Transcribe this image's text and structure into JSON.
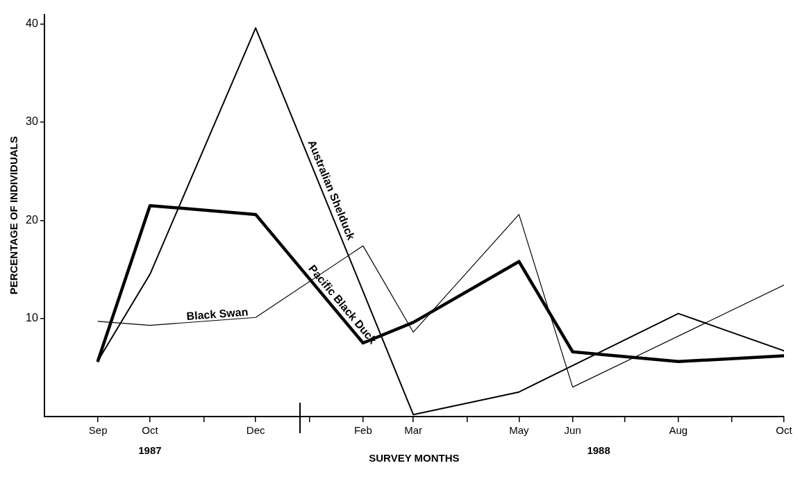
{
  "chart_data": {
    "type": "line",
    "xlabel": "SURVEY MONTHS",
    "ylabel": "PERCENTAGE OF INDIVIDUALS",
    "xlim": [
      "1987-08",
      "1988-10"
    ],
    "xticks": [
      {
        "value": "1987-09",
        "label": "Sep"
      },
      {
        "value": "1987-10",
        "label": "Oct"
      },
      {
        "value": "1987-11",
        "label": null
      },
      {
        "value": "1987-12",
        "label": "Dec"
      },
      {
        "value": "1988-01",
        "label": null
      },
      {
        "value": "1988-02",
        "label": "Feb"
      },
      {
        "value": "1988-03",
        "label": "Mar"
      },
      {
        "value": "1988-04",
        "label": null
      },
      {
        "value": "1988-05",
        "label": "May"
      },
      {
        "value": "1988-06",
        "label": "Jun"
      },
      {
        "value": "1988-07",
        "label": null
      },
      {
        "value": "1988-08",
        "label": "Aug"
      },
      {
        "value": "1988-09",
        "label": null
      },
      {
        "value": "1988-10",
        "label": "Oct"
      }
    ],
    "ylim": [
      0,
      41
    ],
    "yticks": [
      10,
      20,
      30,
      40
    ],
    "series": [
      {
        "name": "Australian Shelduck",
        "color": "#000000",
        "x": [
          "1987-09",
          "1987-10",
          "1987-12",
          "1988-03",
          "1988-05",
          "1988-08",
          "1988-10"
        ],
        "values": [
          5.7,
          14.5,
          39.6,
          0.2,
          2.5,
          10.5,
          6.7
        ]
      },
      {
        "name": "Pacific Black Duck",
        "color": "#000000",
        "x": [
          "1987-09",
          "1987-10",
          "1987-12",
          "1988-02",
          "1988-03",
          "1988-05",
          "1988-06",
          "1988-08",
          "1988-10"
        ],
        "values": [
          5.7,
          21.5,
          20.6,
          7.5,
          9.6,
          15.8,
          6.6,
          5.6,
          6.2
        ]
      },
      {
        "name": "Black Swan",
        "color": "#000000",
        "x": [
          "1987-09",
          "1987-10",
          "1987-12",
          "1988-02",
          "1988-03",
          "1988-05",
          "1988-06",
          "1988-10"
        ],
        "values": [
          9.7,
          9.3,
          10.1,
          17.4,
          8.6,
          20.6,
          3.0,
          13.4
        ]
      }
    ],
    "annotations": [
      "1987",
      "1988"
    ],
    "grid": false,
    "legend": false,
    "marker": "none",
    "line_style": "solid"
  }
}
